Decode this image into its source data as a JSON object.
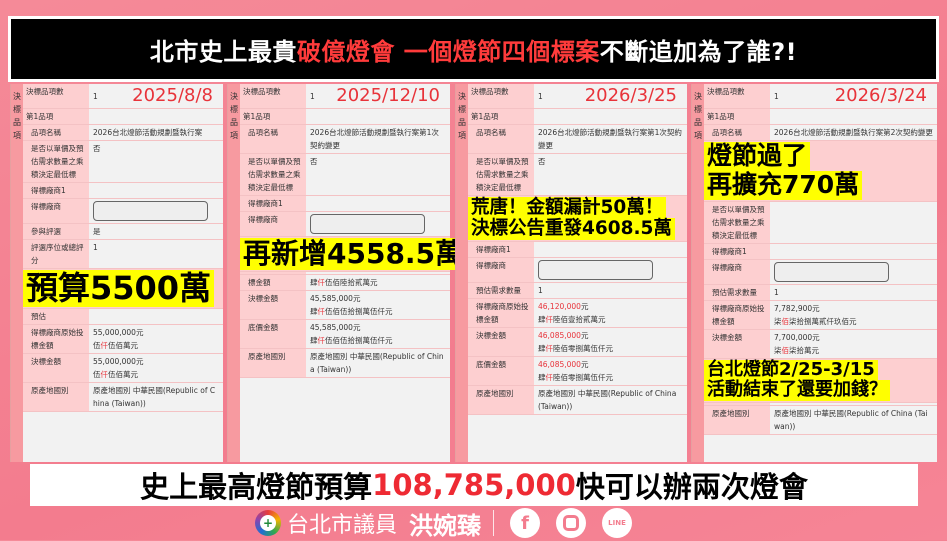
{
  "banner": {
    "parts": [
      {
        "t": "北市史上最貴"
      },
      {
        "t": "破億燈會 一個燈節四個標案",
        "red": true
      },
      {
        "t": " 不斷追加為了誰?!"
      }
    ]
  },
  "panels": [
    {
      "side": "決標品項",
      "date": "2025/8/8",
      "rows": [
        {
          "label": "決標品項數",
          "lines": [
            [
              {
                "t": "1"
              }
            ]
          ]
        },
        {
          "label": "第1品項",
          "lines": []
        },
        {
          "label": "品項名稱",
          "ind": true,
          "lines": [
            [
              {
                "t": "2026台北燈節活動規劃暨執行案"
              }
            ]
          ]
        },
        {
          "label": "是否以單價及預估需求數量之乘積決定最低標",
          "ind": true,
          "lines": [
            [
              {
                "t": "否"
              }
            ]
          ]
        },
        {
          "label": "得標廠商1",
          "ind": true,
          "lines": []
        },
        {
          "label": "得標廠商",
          "ind": true,
          "box": true
        },
        {
          "label": "參與評選",
          "ind": true,
          "lines": [
            [
              {
                "t": "是"
              }
            ]
          ]
        },
        {
          "label": "評選序位或總評分",
          "ind": true,
          "lines": [
            [
              {
                "t": "1"
              }
            ]
          ]
        },
        {
          "label": "預估",
          "ind": true,
          "lines": []
        },
        {
          "label": "得標廠商原始投標金額",
          "ind": true,
          "lines": [
            [
              {
                "t": "55,000,000元"
              }
            ],
            [
              {
                "t": "伍"
              },
              {
                "t": "仟",
                "red": true
              },
              {
                "t": "伍佰萬元"
              }
            ]
          ]
        },
        {
          "label": "決標金額",
          "ind": true,
          "lines": [
            [
              {
                "t": "55,000,000元"
              }
            ],
            [
              {
                "t": "伍"
              },
              {
                "t": "仟",
                "red": true
              },
              {
                "t": "伍佰萬元"
              }
            ]
          ]
        },
        {
          "label": "原產地國別",
          "ind": true,
          "lines": [
            [
              {
                "t": "原產地國別 中華民國(Republic of China (Taiwan))"
              }
            ]
          ]
        }
      ]
    },
    {
      "side": "決標品項",
      "date": "2025/12/10",
      "rows": [
        {
          "label": "決標品項數",
          "lines": [
            [
              {
                "t": "1"
              }
            ]
          ]
        },
        {
          "label": "第1品項",
          "lines": []
        },
        {
          "label": "品項名稱",
          "ind": true,
          "lines": [
            [
              {
                "t": "2026台北燈節活動規劃暨執行案第1次契約變更"
              }
            ]
          ]
        },
        {
          "label": "是否以單價及預估需求數量之乘積決定最低標",
          "ind": true,
          "lines": [
            [
              {
                "t": "否"
              }
            ]
          ]
        },
        {
          "label": "得標廠商1",
          "ind": true,
          "lines": []
        },
        {
          "label": "得標廠商",
          "ind": true,
          "box": true
        },
        {
          "label": "",
          "ind": true,
          "lines": [
            [
              {
                "t": ""
              }
            ]
          ]
        },
        {
          "label": "標金額",
          "ind": true,
          "lines": [
            [
              {
                "t": "肆"
              },
              {
                "t": "仟",
                "red": true
              },
              {
                "t": "伍佰陸拾貳萬元"
              }
            ]
          ]
        },
        {
          "label": "決標金額",
          "ind": true,
          "lines": [
            [
              {
                "t": "45,585,000元"
              }
            ],
            [
              {
                "t": "肆"
              },
              {
                "t": "仟",
                "red": true
              },
              {
                "t": "伍佰伍拾捌萬伍仟元"
              }
            ]
          ]
        },
        {
          "label": "底價金額",
          "ind": true,
          "lines": [
            [
              {
                "t": "45,585,000元"
              }
            ],
            [
              {
                "t": "肆"
              },
              {
                "t": "仟",
                "red": true
              },
              {
                "t": "伍佰伍拾捌萬伍仟元"
              }
            ]
          ]
        },
        {
          "label": "原產地國別",
          "ind": true,
          "lines": [
            [
              {
                "t": "原產地國別 中華民國(Republic of China (Taiwan))"
              }
            ]
          ]
        }
      ]
    },
    {
      "side": "決標品項",
      "date": "2026/3/25",
      "rows": [
        {
          "label": "決標品項數",
          "lines": [
            [
              {
                "t": "1"
              }
            ]
          ]
        },
        {
          "label": "第1品項",
          "lines": []
        },
        {
          "label": "品項名稱",
          "ind": true,
          "lines": [
            [
              {
                "t": "2026台北燈節活動規劃暨執行案第1次契約變更"
              }
            ]
          ]
        },
        {
          "label": "是否以單價及預估需求數量之乘積決定最低標",
          "ind": true,
          "lines": [
            [
              {
                "t": "否"
              }
            ]
          ]
        },
        {
          "label": "得標廠商1",
          "ind": true,
          "lines": []
        },
        {
          "label": "得標廠商",
          "ind": true,
          "box": true
        },
        {
          "label": "預估需求數量",
          "ind": true,
          "lines": [
            [
              {
                "t": "1"
              }
            ]
          ]
        },
        {
          "label": "得標廠商原始投標金額",
          "ind": true,
          "lines": [
            [
              {
                "t": "46,120,000",
                "red": true
              },
              {
                "t": "元"
              }
            ],
            [
              {
                "t": "肆"
              },
              {
                "t": "仟",
                "red": true
              },
              {
                "t": "陸佰壹拾貳萬元"
              }
            ]
          ]
        },
        {
          "label": "決標金額",
          "ind": true,
          "lines": [
            [
              {
                "t": "46,085,000",
                "red": true
              },
              {
                "t": "元"
              }
            ],
            [
              {
                "t": "肆"
              },
              {
                "t": "仟",
                "red": true
              },
              {
                "t": "陸佰零捌萬伍仟元"
              }
            ]
          ]
        },
        {
          "label": "底價金額",
          "ind": true,
          "lines": [
            [
              {
                "t": "46,085,000",
                "red": true
              },
              {
                "t": "元"
              }
            ],
            [
              {
                "t": "肆"
              },
              {
                "t": "仟",
                "red": true
              },
              {
                "t": "陸佰零捌萬伍仟元"
              }
            ]
          ]
        },
        {
          "label": "原產地國別",
          "ind": true,
          "lines": [
            [
              {
                "t": "原產地國別 中華民國(Republic of China (Taiwan))"
              }
            ]
          ]
        }
      ]
    },
    {
      "side": "決標品項",
      "date": "2026/3/24",
      "rows": [
        {
          "label": "決標品項數",
          "lines": [
            [
              {
                "t": "1"
              }
            ]
          ]
        },
        {
          "label": "第1品項",
          "lines": []
        },
        {
          "label": "品項名稱",
          "ind": true,
          "lines": [
            [
              {
                "t": "2026台北燈節活動規劃暨執行案第2次契約變更"
              }
            ]
          ]
        },
        {
          "label": "是否以單價及預估需求數量之乘積決定最低標",
          "ind": true,
          "lines": [
            [
              {
                "t": ""
              }
            ]
          ]
        },
        {
          "label": "得標廠商1",
          "ind": true,
          "lines": []
        },
        {
          "label": "得標廠商",
          "ind": true,
          "box": true
        },
        {
          "label": "預估需求數量",
          "ind": true,
          "lines": [
            [
              {
                "t": "1"
              }
            ]
          ]
        },
        {
          "label": "得標廠商原始投標金額",
          "ind": true,
          "lines": [
            [
              {
                "t": "7,782,900元"
              }
            ],
            [
              {
                "t": "柒"
              },
              {
                "t": "佰",
                "red": true
              },
              {
                "t": "柒拾捌萬貳仟玖佰元"
              }
            ]
          ]
        },
        {
          "label": "決標金額",
          "ind": true,
          "lines": [
            [
              {
                "t": "7,700,000元"
              }
            ],
            [
              {
                "t": "柒"
              },
              {
                "t": "佰",
                "red": true
              },
              {
                "t": "柒拾萬元"
              }
            ]
          ]
        },
        {
          "label": "",
          "ind": true,
          "lines": [
            [
              {
                "t": ""
              }
            ]
          ]
        },
        {
          "label": "原產地國別",
          "ind": true,
          "lines": [
            [
              {
                "t": "原產地國別 中華民國(Republic of China (Taiwan))"
              }
            ]
          ]
        }
      ]
    }
  ],
  "highlights": {
    "budget": "預算5500萬",
    "added": "再新增4558.5萬",
    "absurd_1": "荒唐！金額漏計50萬！",
    "absurd_2": "決標公告重發4608.5萬",
    "after_1": "燈節過了",
    "after_2": "再擴充770萬",
    "period_1": "台北燈節2/25-3/15",
    "period_2": "活動結束了還要加錢？"
  },
  "caption": {
    "pre": "史上最高燈節預算",
    "amount": "108,785,000",
    "post": " 快可以辦兩次燈會"
  },
  "footer": {
    "title": "台北市議員",
    "name": "洪婉臻",
    "social": [
      "facebook-icon",
      "instagram-icon",
      "line-icon"
    ],
    "line_label": "LINE"
  },
  "colors": {
    "accent_red": "#e8333a",
    "highlight": "#ffff00",
    "background": "#f37c8e"
  }
}
